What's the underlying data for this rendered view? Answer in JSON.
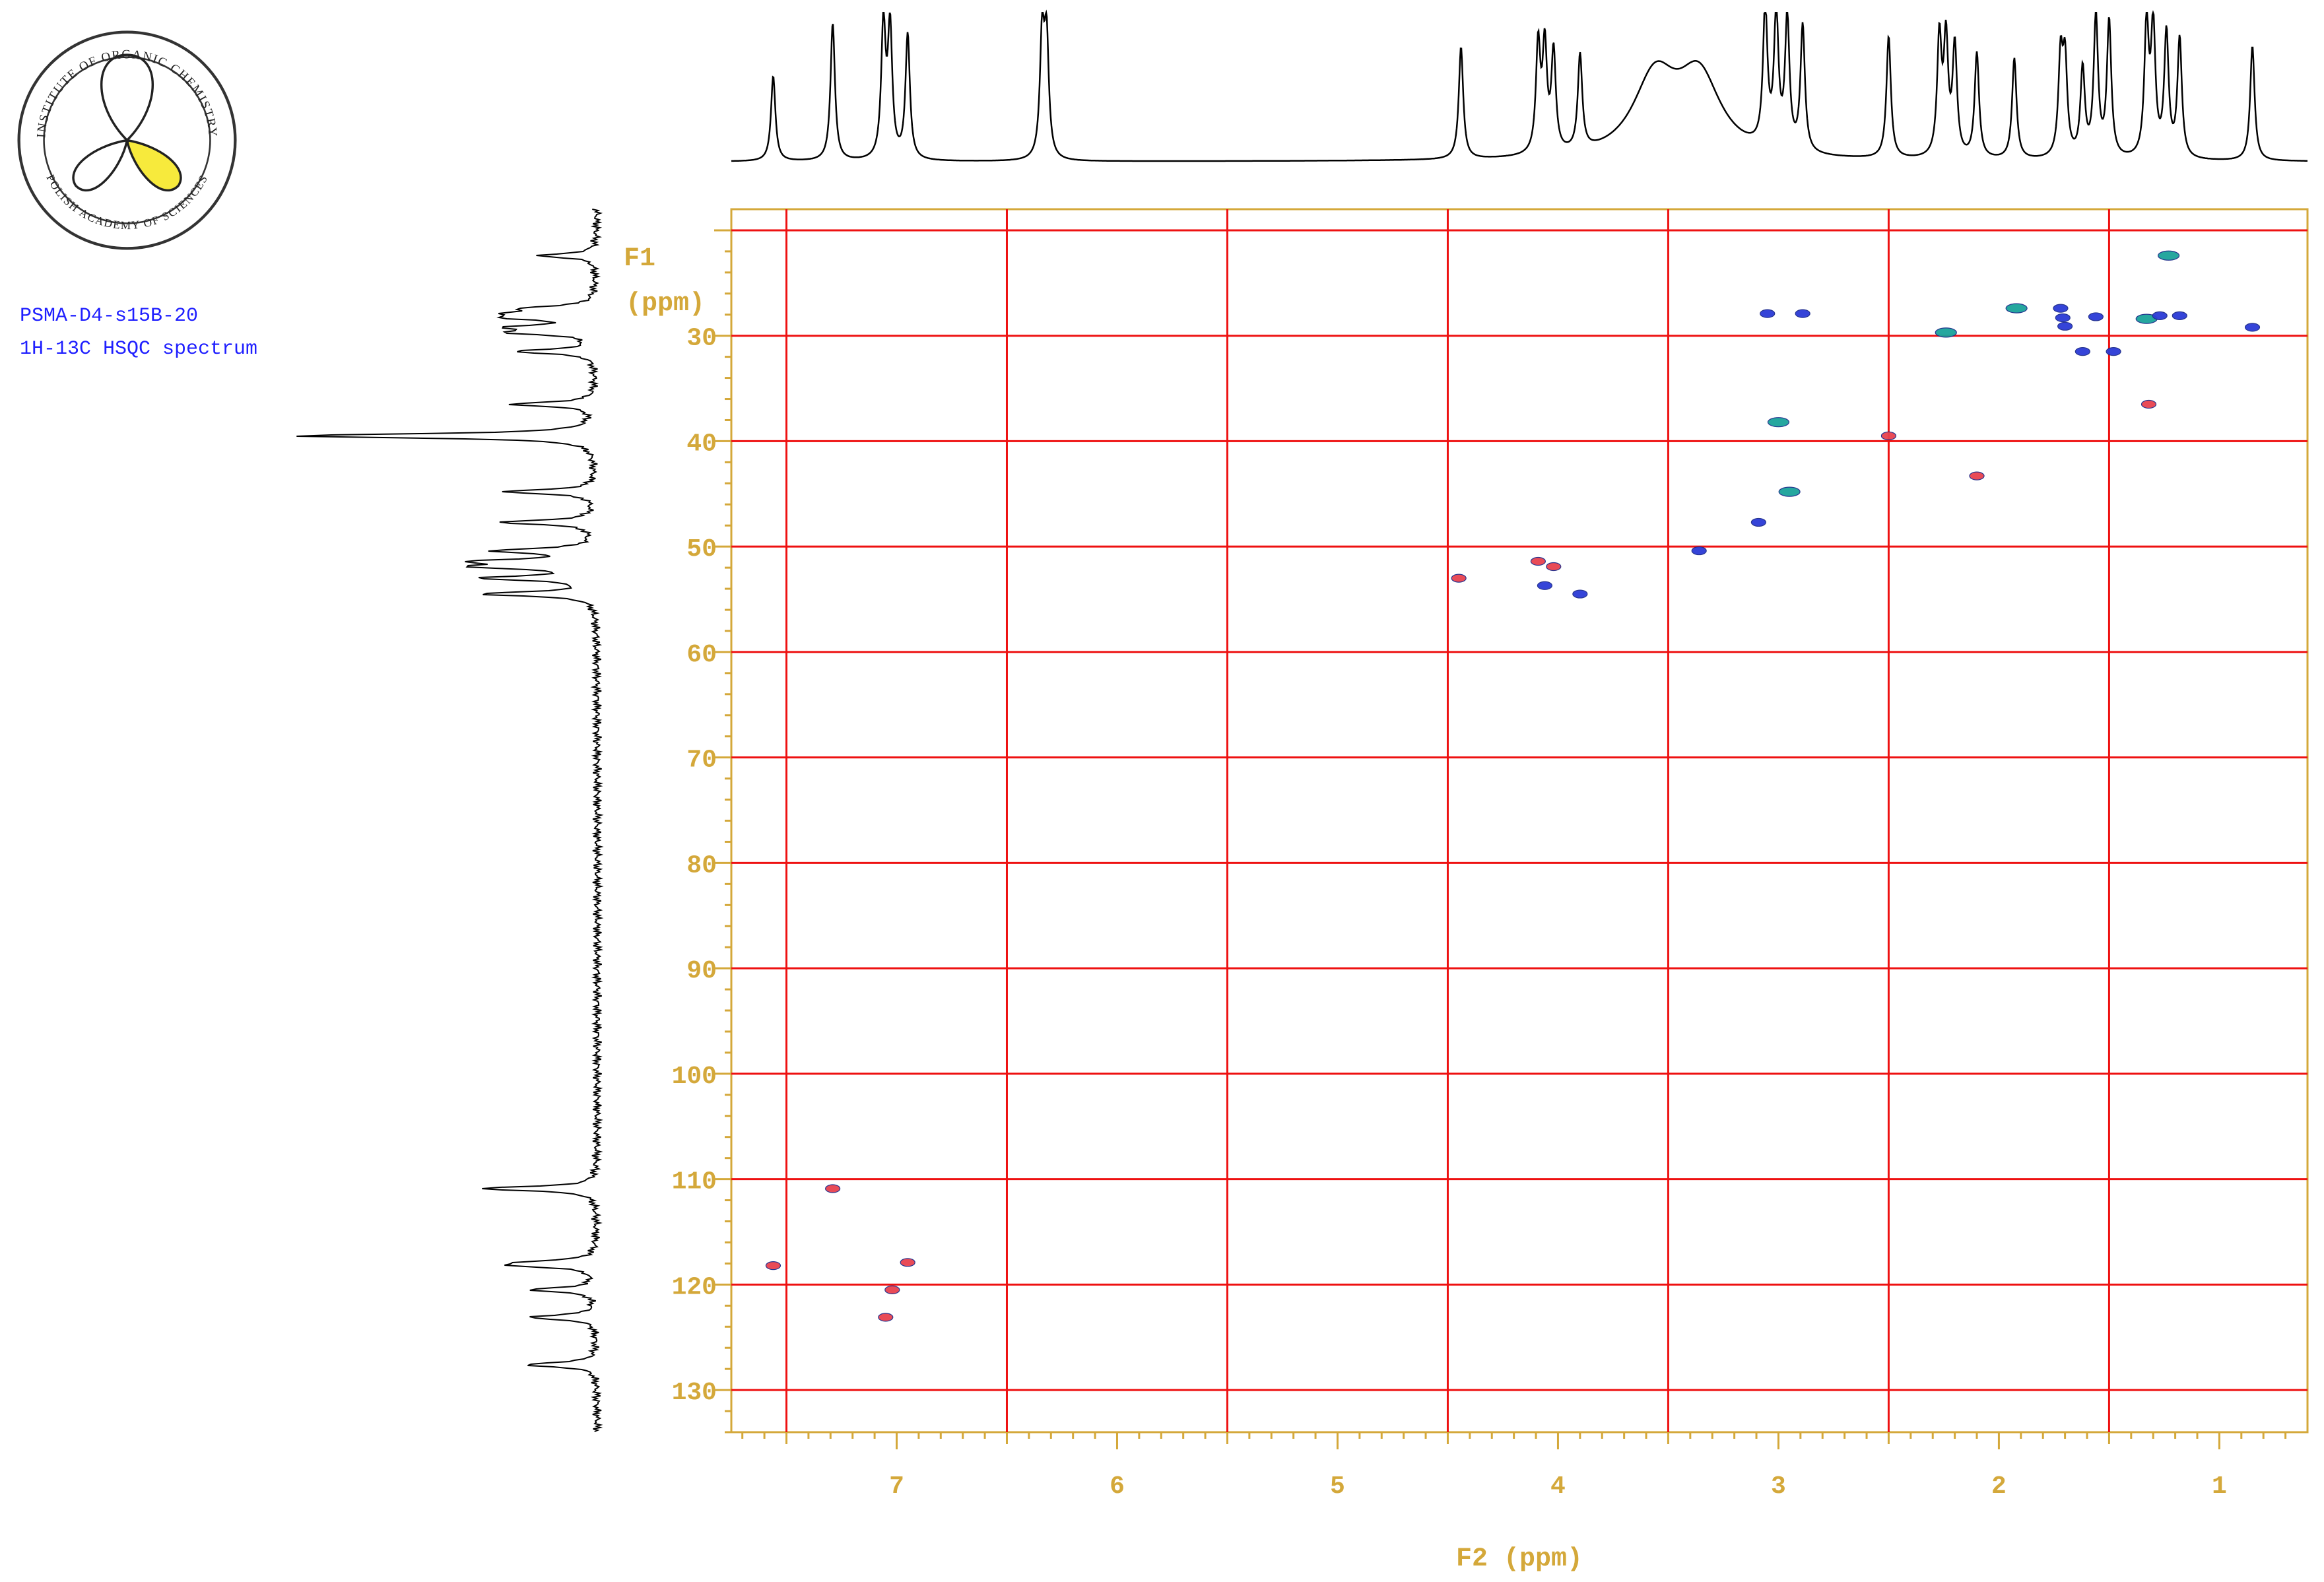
{
  "logo": {
    "top_text": "INSTITUTE OF ORGANIC CHEMISTRY",
    "bottom_text": "POLISH ACADEMY OF SCIENCES",
    "lobe_color": "#f7ea3c"
  },
  "caption": {
    "line1": "PSMA-D4-s15B-20",
    "line2": "1H-13C HSQC spectrum",
    "color": "#1f1fff"
  },
  "chart_data": {
    "type": "scatter",
    "xlabel": "F2 (ppm)",
    "ylabel_line1": "F1",
    "ylabel_line2": "(ppm)",
    "xlim": [
      7.75,
      0.6
    ],
    "ylim": [
      134,
      18
    ],
    "x_reversed": true,
    "y_reversed": true,
    "x_ticks": [
      7,
      6,
      5,
      4,
      3,
      2,
      1
    ],
    "y_ticks": [
      30,
      40,
      50,
      60,
      70,
      80,
      90,
      100,
      110,
      120,
      130
    ],
    "grid": true,
    "grid_x": [
      7.5,
      6.5,
      5.5,
      4.5,
      3.5,
      2.5,
      1.5
    ],
    "grid_y": [
      20,
      30,
      40,
      50,
      60,
      70,
      80,
      90,
      100,
      110,
      120,
      130
    ],
    "colors": {
      "frame": "#d4a83a",
      "grid": "#ee1111",
      "positive": "#e8424f",
      "negative": "#2b3bd6",
      "overlap": "#1aa39a"
    },
    "peaks": [
      {
        "x": 7.56,
        "y": 118.2,
        "phase": "positive"
      },
      {
        "x": 7.29,
        "y": 110.9,
        "phase": "positive"
      },
      {
        "x": 7.05,
        "y": 123.1,
        "phase": "positive"
      },
      {
        "x": 7.02,
        "y": 120.5,
        "phase": "positive"
      },
      {
        "x": 6.95,
        "y": 117.9,
        "phase": "positive"
      },
      {
        "x": 4.45,
        "y": 53.0,
        "phase": "positive"
      },
      {
        "x": 4.09,
        "y": 51.4,
        "phase": "positive"
      },
      {
        "x": 4.02,
        "y": 51.9,
        "phase": "positive"
      },
      {
        "x": 4.06,
        "y": 53.7,
        "phase": "negative"
      },
      {
        "x": 3.9,
        "y": 54.5,
        "phase": "negative"
      },
      {
        "x": 3.36,
        "y": 50.4,
        "phase": "negative"
      },
      {
        "x": 3.09,
        "y": 47.7,
        "phase": "negative"
      },
      {
        "x": 3.05,
        "y": 27.9,
        "phase": "negative"
      },
      {
        "x": 2.89,
        "y": 27.9,
        "phase": "negative"
      },
      {
        "x": 3.0,
        "y": 38.2,
        "phase": "overlap"
      },
      {
        "x": 2.95,
        "y": 44.8,
        "phase": "overlap"
      },
      {
        "x": 2.5,
        "y": 39.5,
        "phase": "positive"
      },
      {
        "x": 2.24,
        "y": 29.7,
        "phase": "overlap"
      },
      {
        "x": 2.1,
        "y": 43.3,
        "phase": "positive"
      },
      {
        "x": 1.92,
        "y": 27.4,
        "phase": "overlap"
      },
      {
        "x": 1.72,
        "y": 27.4,
        "phase": "negative"
      },
      {
        "x": 1.71,
        "y": 28.3,
        "phase": "negative"
      },
      {
        "x": 1.7,
        "y": 29.1,
        "phase": "negative"
      },
      {
        "x": 1.62,
        "y": 31.5,
        "phase": "negative"
      },
      {
        "x": 1.56,
        "y": 28.2,
        "phase": "negative"
      },
      {
        "x": 1.48,
        "y": 31.5,
        "phase": "negative"
      },
      {
        "x": 1.33,
        "y": 28.4,
        "phase": "overlap"
      },
      {
        "x": 1.27,
        "y": 28.1,
        "phase": "negative"
      },
      {
        "x": 1.18,
        "y": 28.1,
        "phase": "negative"
      },
      {
        "x": 1.23,
        "y": 22.4,
        "phase": "overlap"
      },
      {
        "x": 1.32,
        "y": 36.5,
        "phase": "positive"
      },
      {
        "x": 0.85,
        "y": 29.2,
        "phase": "negative"
      }
    ],
    "projection_f2_ppm": [
      7.56,
      7.29,
      7.06,
      7.03,
      6.95,
      6.34,
      6.32,
      4.44,
      4.09,
      4.06,
      4.02,
      3.9,
      3.56,
      3.36,
      3.06,
      3.01,
      2.96,
      2.89,
      2.5,
      2.27,
      2.24,
      2.2,
      2.1,
      1.93,
      1.72,
      1.7,
      1.62,
      1.56,
      1.5,
      1.33,
      1.3,
      1.24,
      1.18,
      0.85
    ],
    "projection_f1_ppm": [
      22.4,
      27.4,
      27.9,
      28.3,
      29.2,
      29.7,
      31.5,
      36.5,
      39.5,
      44.8,
      47.7,
      50.4,
      51.4,
      51.9,
      53.0,
      54.5,
      110.9,
      117.9,
      118.2,
      120.5,
      123.1,
      127.6
    ]
  }
}
